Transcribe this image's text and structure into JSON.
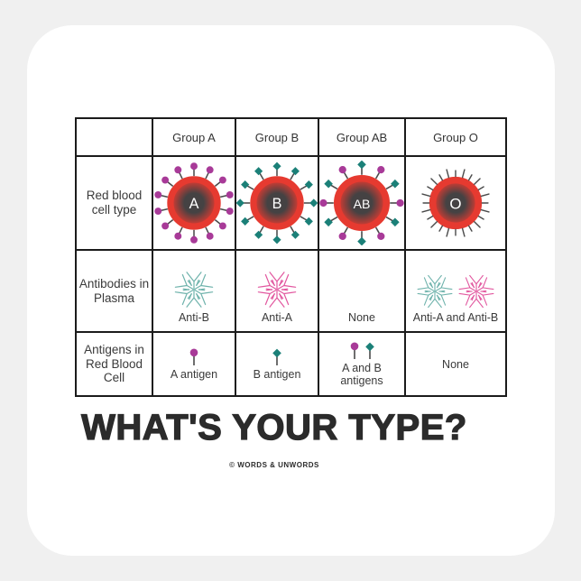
{
  "sticker": {
    "title": "WHAT'S YOUR TYPE?",
    "copyright": "© WORDS & UNWORDS"
  },
  "table": {
    "row_labels": [
      "Red blood cell type",
      "Antibodies in Plasma",
      "Antigens in Red Blood Cell"
    ],
    "groups": [
      {
        "header": "Group A",
        "cell_letter": "A",
        "antigen_shape": "circle",
        "antigen_count": 14,
        "antibody_clusters": [
          "teal"
        ],
        "antibody_label": "Anti-B",
        "pins": [
          "circle"
        ],
        "antigen_label": "A antigen"
      },
      {
        "header": "Group B",
        "cell_letter": "B",
        "antigen_shape": "diamond",
        "antigen_count": 12,
        "antibody_clusters": [
          "pink"
        ],
        "antibody_label": "Anti-A",
        "pins": [
          "diamond"
        ],
        "antigen_label": "B antigen"
      },
      {
        "header": "Group AB",
        "cell_letter": "AB",
        "antigen_shape": "both",
        "antigen_count": 12,
        "antibody_clusters": [],
        "antibody_label": "None",
        "pins": [
          "circle",
          "diamond"
        ],
        "antigen_label": "A and B antigens"
      },
      {
        "header": "Group O",
        "cell_letter": "O",
        "antigen_shape": "spikes",
        "antigen_count": 24,
        "antibody_clusters": [
          "teal",
          "pink"
        ],
        "antibody_label": "Anti-A and Anti-B",
        "pins": [],
        "antigen_label": "None"
      }
    ],
    "colors": {
      "cell_red": "#e63a30",
      "cell_core": "#454243",
      "antigen_a_purple": "#a83a98",
      "antigen_b_teal": "#1b8078",
      "antibody_teal": "#6fb3ac",
      "antibody_pink": "#e2579f",
      "stem_gray": "#4a4a4a",
      "border_black": "#1b1b1b",
      "text_gray": "#3a3a3a",
      "background_gray": "#f0f0f0",
      "sticker_white": "#ffffff",
      "title_black": "#2b2b2b"
    }
  }
}
